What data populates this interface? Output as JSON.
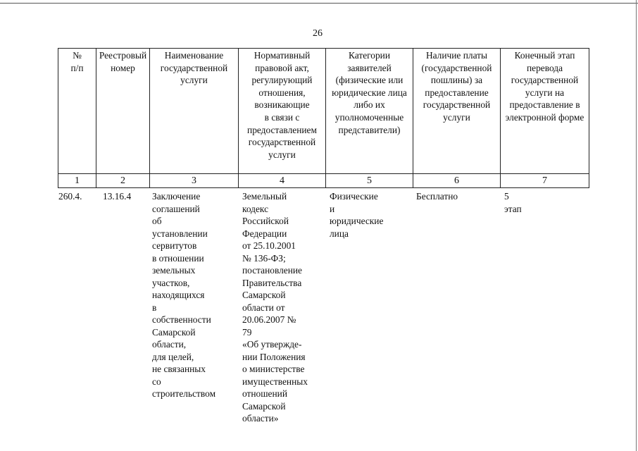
{
  "page_number": "26",
  "table": {
    "headers": [
      "№\nп/п",
      "Реестровый номер",
      "Наименование государственной услуги",
      "Нормативный правовой акт, регулирующий отношения, возникающие\nв связи с предоставлением государственной услуги",
      "Категории заявителей (физические или юридические лица либо их уполномоченные представители)",
      "Наличие платы (государственной пошлины) за предоставление государственной услуги",
      "Конечный этап перевода государственной услуги на предоставление в электронной форме"
    ],
    "column_numbers": [
      "1",
      "2",
      "3",
      "4",
      "5",
      "6",
      "7"
    ],
    "rows": [
      {
        "number": "260.4.",
        "registry_number": "13.16.4",
        "service_name": "Заключение\nсоглашений\nоб установлении\nсервитутов\nв отношении\nземельных\nучастков,\nнаходящихся\nв собственности\nСамарской\nобласти,\nдля целей,\nне связанных со\nстроительством",
        "legal_act": "Земельный\nкодекс\nРоссийской\nФедерации\nот 25.10.2001\n№ 136-ФЗ;\nпостановление\nПравительства\nСамарской\nобласти от\n20.06.2007 № 79\n«Об утвержде-\nнии Положения\nо министерстве\nимущественных\nотношений\nСамарской\nобласти»",
        "applicants": "Физические\nи юридические\nлица",
        "fee": "Бесплатно",
        "final_stage": "5 этап"
      }
    ]
  }
}
